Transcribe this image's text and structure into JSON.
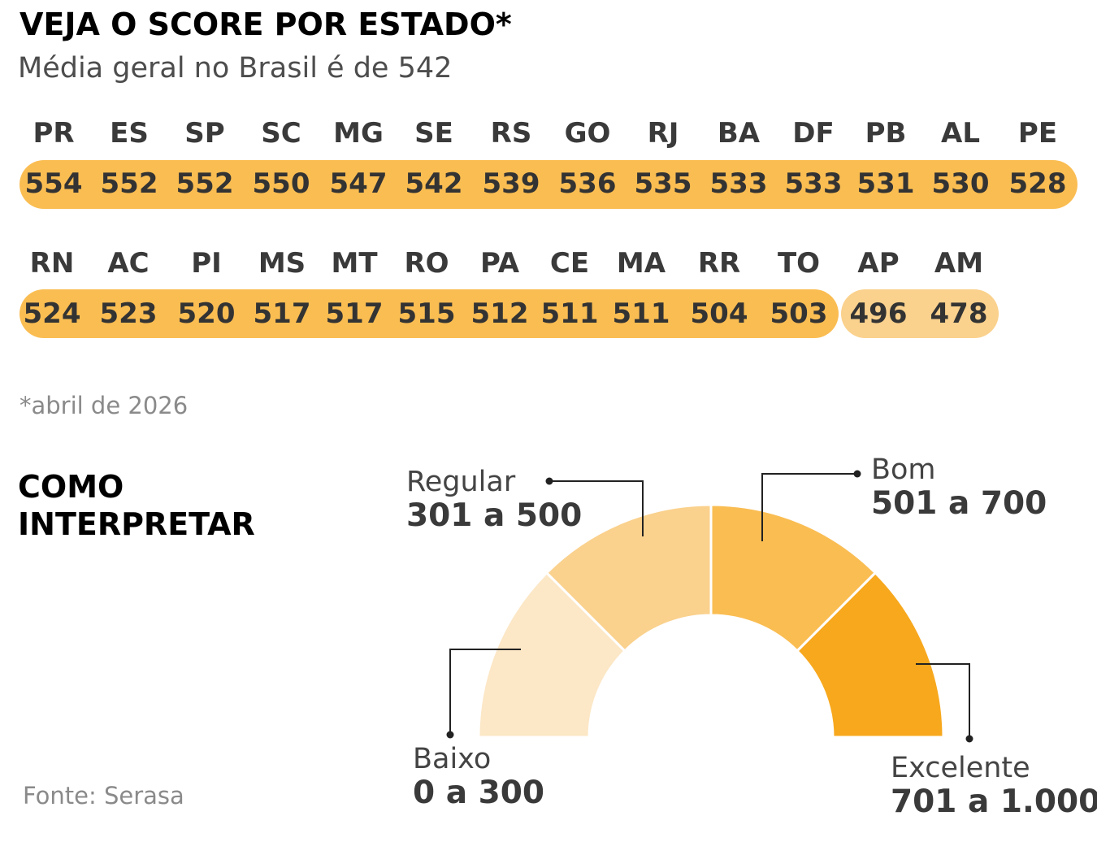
{
  "header": {
    "title": "VEJA O SCORE POR ESTADO*",
    "subtitle": "Média geral no Brasil é de 542"
  },
  "chart_data": [
    {
      "type": "table",
      "title": "VEJA O SCORE POR ESTADO*",
      "subtitle": "Média geral no Brasil é de 542",
      "categories": [
        "PR",
        "ES",
        "SP",
        "SC",
        "MG",
        "SE",
        "RS",
        "GO",
        "RJ",
        "BA",
        "DF",
        "PB",
        "AL",
        "PE",
        "RN",
        "AC",
        "PI",
        "MS",
        "MT",
        "RO",
        "PA",
        "CE",
        "MA",
        "RR",
        "TO",
        "AP",
        "AM"
      ],
      "values": [
        554,
        552,
        552,
        550,
        547,
        542,
        539,
        536,
        535,
        533,
        533,
        531,
        530,
        528,
        524,
        523,
        520,
        517,
        517,
        515,
        512,
        511,
        511,
        504,
        503,
        496,
        478
      ],
      "bands": [
        "Bom",
        "Bom",
        "Bom",
        "Bom",
        "Bom",
        "Bom",
        "Bom",
        "Bom",
        "Bom",
        "Bom",
        "Bom",
        "Bom",
        "Bom",
        "Bom",
        "Bom",
        "Bom",
        "Bom",
        "Bom",
        "Bom",
        "Bom",
        "Bom",
        "Bom",
        "Bom",
        "Bom",
        "Bom",
        "Regular",
        "Regular"
      ]
    },
    {
      "type": "pie",
      "title": "COMO INTERPRETAR",
      "categories": [
        "Baixo",
        "Regular",
        "Bom",
        "Excelente"
      ],
      "ranges": [
        "0 a 300",
        "301 a 500",
        "501 a 700",
        "701 a 1.000"
      ],
      "values": [
        25,
        25,
        25,
        25
      ],
      "colors": [
        "#fce7c6",
        "#fad18d",
        "#fabd52",
        "#f7a81d"
      ]
    }
  ],
  "colors": {
    "bom": "#fabd52",
    "regular": "#fad18d",
    "leader": "#222222"
  },
  "footnote": "*abril de 2026",
  "section_title": [
    "COMO",
    "INTERPRETAR"
  ],
  "source": "Fonte: Serasa"
}
